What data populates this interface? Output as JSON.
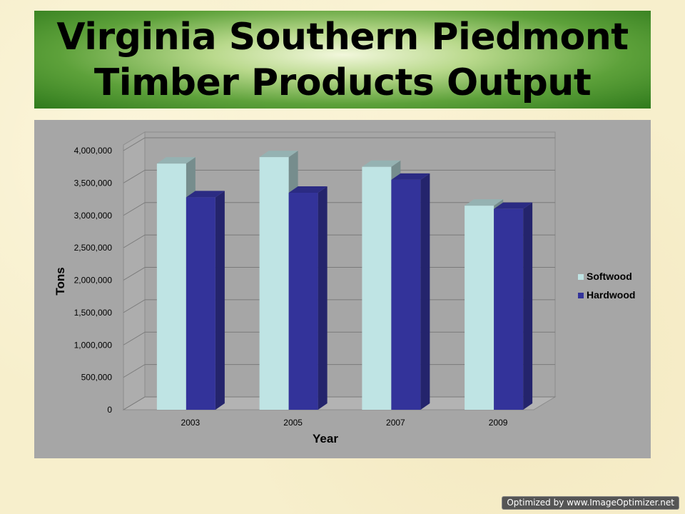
{
  "title": {
    "line1": "Virginia Southern Piedmont",
    "line2": "Timber Products Output"
  },
  "chart_data": {
    "type": "bar",
    "categories": [
      "2003",
      "2005",
      "2007",
      "2009"
    ],
    "series": [
      {
        "name": "Softwood",
        "values": [
          3800000,
          3900000,
          3750000,
          3150000
        ],
        "color": "#bfe4e4"
      },
      {
        "name": "Hardwood",
        "values": [
          3280000,
          3350000,
          3550000,
          3100000
        ],
        "color": "#33339a"
      }
    ],
    "xlabel": "Year",
    "ylabel": "Tons",
    "ylim": [
      0,
      4000000
    ],
    "yticks": [
      "0",
      "500,000",
      "1,000,000",
      "1,500,000",
      "2,000,000",
      "2,500,000",
      "3,000,000",
      "3,500,000",
      "4,000,000"
    ],
    "grid": true,
    "legend_position": "right",
    "style": "3d-clustered-column"
  },
  "watermark": "Optimized by www.ImageOptimizer.net"
}
